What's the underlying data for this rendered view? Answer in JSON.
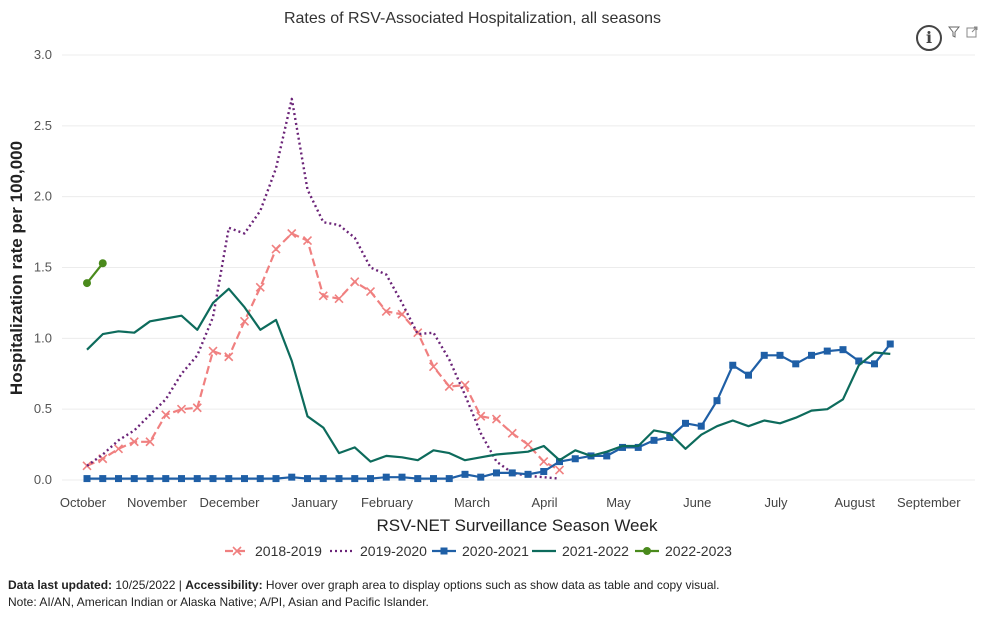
{
  "chart_data": {
    "type": "line",
    "title": "Rates of RSV-Associated Hospitalization, all seasons",
    "xlabel": "RSV-NET Surveillance Season Week",
    "ylabel": "Hospitalization rate per 100,000",
    "ylim": [
      0,
      3.0
    ],
    "yticks": [
      "0.0",
      "0.5",
      "1.0",
      "1.5",
      "2.0",
      "2.5",
      "3.0"
    ],
    "ytick_values": [
      0,
      0.5,
      1.0,
      1.5,
      2.0,
      2.5,
      3.0
    ],
    "week_count": 53,
    "month_labels": [
      {
        "label": "October",
        "week": 0
      },
      {
        "label": "November",
        "week": 4.7
      },
      {
        "label": "December",
        "week": 9.3
      },
      {
        "label": "January",
        "week": 14.7
      },
      {
        "label": "February",
        "week": 19.3
      },
      {
        "label": "March",
        "week": 24.7
      },
      {
        "label": "April",
        "week": 29.3
      },
      {
        "label": "May",
        "week": 34
      },
      {
        "label": "June",
        "week": 39
      },
      {
        "label": "July",
        "week": 44
      },
      {
        "label": "August",
        "week": 49
      },
      {
        "label": "September",
        "week": 53.7
      }
    ],
    "legend_position": "bottom",
    "series": [
      {
        "name": "2018-2019",
        "color": "#f08080",
        "style": "dashed",
        "marker": "x",
        "values": [
          0.1,
          0.15,
          0.22,
          0.27,
          0.27,
          0.46,
          0.5,
          0.51,
          0.91,
          0.87,
          1.12,
          1.36,
          1.63,
          1.74,
          1.69,
          1.3,
          1.28,
          1.4,
          1.33,
          1.19,
          1.17,
          1.04,
          0.8,
          0.66,
          0.67,
          0.45,
          0.43,
          0.33,
          0.25,
          0.13,
          0.07
        ]
      },
      {
        "name": "2019-2020",
        "color": "#6b2478",
        "style": "dotted",
        "marker": "none",
        "values": [
          0.1,
          0.18,
          0.28,
          0.35,
          0.46,
          0.57,
          0.75,
          0.88,
          1.15,
          1.78,
          1.74,
          1.9,
          2.2,
          2.69,
          2.05,
          1.82,
          1.8,
          1.71,
          1.5,
          1.45,
          1.25,
          1.03,
          1.04,
          0.85,
          0.6,
          0.33,
          0.13,
          0.05,
          0.03,
          0.02,
          0.01
        ]
      },
      {
        "name": "2020-2021",
        "color": "#1f5fa6",
        "style": "solid",
        "marker": "square",
        "values": [
          0.01,
          0.01,
          0.01,
          0.01,
          0.01,
          0.01,
          0.01,
          0.01,
          0.01,
          0.01,
          0.01,
          0.01,
          0.01,
          0.02,
          0.01,
          0.01,
          0.01,
          0.01,
          0.01,
          0.02,
          0.02,
          0.01,
          0.01,
          0.01,
          0.04,
          0.02,
          0.05,
          0.05,
          0.04,
          0.06,
          0.13,
          0.15,
          0.17,
          0.17,
          0.23,
          0.23,
          0.28,
          0.3,
          0.4,
          0.38,
          0.56,
          0.81,
          0.74,
          0.88,
          0.88,
          0.82,
          0.88,
          0.91,
          0.92,
          0.84,
          0.82,
          0.96
        ]
      },
      {
        "name": "2021-2022",
        "color": "#0d6b5c",
        "style": "solid",
        "marker": "none",
        "values": [
          0.92,
          1.03,
          1.05,
          1.04,
          1.12,
          1.14,
          1.16,
          1.06,
          1.25,
          1.35,
          1.22,
          1.06,
          1.13,
          0.84,
          0.45,
          0.37,
          0.19,
          0.23,
          0.13,
          0.17,
          0.16,
          0.14,
          0.21,
          0.19,
          0.14,
          0.16,
          0.18,
          0.19,
          0.2,
          0.24,
          0.14,
          0.21,
          0.17,
          0.2,
          0.24,
          0.24,
          0.35,
          0.33,
          0.22,
          0.32,
          0.38,
          0.42,
          0.38,
          0.42,
          0.4,
          0.44,
          0.49,
          0.5,
          0.57,
          0.81,
          0.9,
          0.89
        ]
      },
      {
        "name": "2022-2023",
        "color": "#4a8a1c",
        "style": "solid",
        "marker": "circle",
        "values": [
          1.39,
          1.53
        ]
      }
    ]
  },
  "footnote": {
    "updated_label": "Data last updated:",
    "updated_value": " 10/25/2022 | ",
    "accessibility_label": "Accessibility:",
    "accessibility_text": " Hover over graph area to display options such as show data as table and copy visual.",
    "note": "Note: AI/AN, American Indian or Alaska Native; A/PI, Asian and Pacific Islander."
  },
  "icons": {
    "info": "i",
    "filter": "filter-icon",
    "expand": "expand-icon"
  }
}
